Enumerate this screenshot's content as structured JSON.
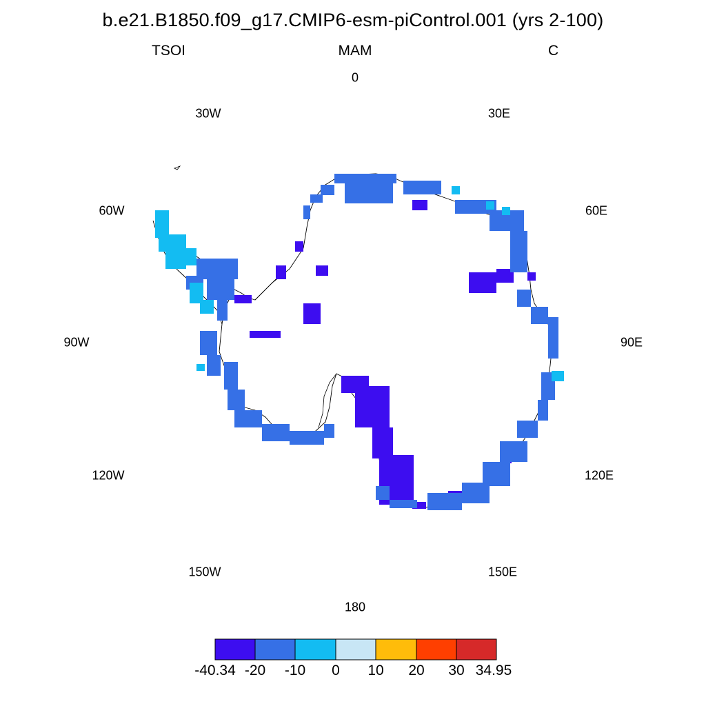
{
  "header": {
    "title": "b.e21.B1850.f09_g17.CMIP6-esm-piControl.001 (yrs 2-100)",
    "variable": "TSOI",
    "season": "MAM",
    "units": "C"
  },
  "longitude_labels": [
    "0",
    "30E",
    "60E",
    "90E",
    "120E",
    "150E",
    "180",
    "150W",
    "120W",
    "90W",
    "60W",
    "30W"
  ],
  "colorbar": {
    "labels": [
      "-40.34",
      "-20",
      "-10",
      "0",
      "10",
      "20",
      "30",
      "34.95"
    ],
    "colors": [
      "#3d0df0",
      "#3670e6",
      "#13bcf2",
      "#c8e6f5",
      "#ffbc0a",
      "#ff3f00",
      "#d62929"
    ]
  },
  "palette": {
    "lt_-20": "#3d0df0",
    "-20_-10": "#3670e6",
    "-10_0": "#13bcf2"
  }
}
